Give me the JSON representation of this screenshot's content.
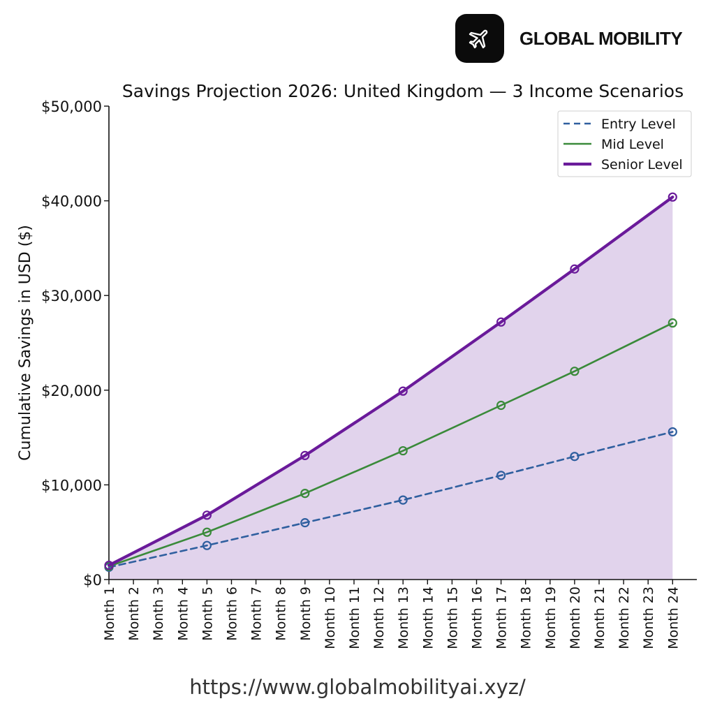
{
  "brand": {
    "name": "GLOBAL MOBILITY",
    "logo_icon": "airplane-icon"
  },
  "footer": {
    "url": "https://www.globalmobilityai.xyz/"
  },
  "colors": {
    "entry": "#2f5f9f",
    "mid": "#3a8a3a",
    "senior": "#6a1a9a",
    "fill": "#dccbe9"
  },
  "chart_data": {
    "type": "line",
    "title": "Savings Projection 2026: United Kingdom — 3 Income Scenarios",
    "xlabel": "",
    "ylabel": "Cumulative Savings in USD ($)",
    "ylim": [
      0,
      50000
    ],
    "yticks": [
      0,
      10000,
      20000,
      30000,
      40000,
      50000
    ],
    "ytick_labels": [
      "$0",
      "$10,000",
      "$20,000",
      "$30,000",
      "$40,000",
      "$50,000"
    ],
    "categories": [
      "Month 1",
      "Month 2",
      "Month 3",
      "Month 4",
      "Month 5",
      "Month 6",
      "Month 7",
      "Month 8",
      "Month 9",
      "Month 10",
      "Month 11",
      "Month 12",
      "Month 13",
      "Month 14",
      "Month 15",
      "Month 16",
      "Month 17",
      "Month 18",
      "Month 19",
      "Month 20",
      "Month 21",
      "Month 22",
      "Month 23",
      "Month 24"
    ],
    "legend_position": "top-right",
    "fill_under": "Senior Level",
    "series": [
      {
        "name": "Entry Level",
        "style": "dashed",
        "color": "#2f5f9f",
        "points": [
          {
            "x": "Month 1",
            "y": 1300
          },
          {
            "x": "Month 5",
            "y": 3600
          },
          {
            "x": "Month 9",
            "y": 6000
          },
          {
            "x": "Month 13",
            "y": 8400
          },
          {
            "x": "Month 17",
            "y": 11000
          },
          {
            "x": "Month 20",
            "y": 13000
          },
          {
            "x": "Month 24",
            "y": 15600
          }
        ]
      },
      {
        "name": "Mid Level",
        "style": "solid",
        "color": "#3a8a3a",
        "points": [
          {
            "x": "Month 1",
            "y": 1400
          },
          {
            "x": "Month 5",
            "y": 5000
          },
          {
            "x": "Month 9",
            "y": 9100
          },
          {
            "x": "Month 13",
            "y": 13600
          },
          {
            "x": "Month 17",
            "y": 18400
          },
          {
            "x": "Month 20",
            "y": 22000
          },
          {
            "x": "Month 24",
            "y": 27100
          }
        ]
      },
      {
        "name": "Senior Level",
        "style": "thick",
        "color": "#6a1a9a",
        "points": [
          {
            "x": "Month 1",
            "y": 1500
          },
          {
            "x": "Month 5",
            "y": 6800
          },
          {
            "x": "Month 9",
            "y": 13100
          },
          {
            "x": "Month 13",
            "y": 19900
          },
          {
            "x": "Month 17",
            "y": 27200
          },
          {
            "x": "Month 20",
            "y": 32800
          },
          {
            "x": "Month 24",
            "y": 40400
          }
        ]
      }
    ]
  }
}
